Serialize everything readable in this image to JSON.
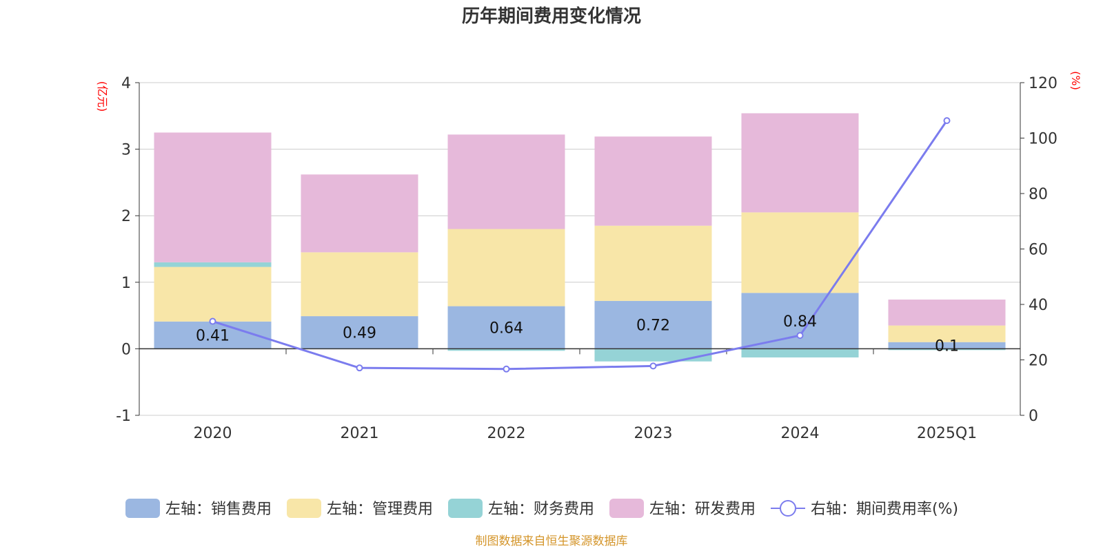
{
  "chart_data": {
    "type": "bar",
    "title": "历年期间费用变化情况",
    "categories": [
      "2020",
      "2021",
      "2022",
      "2023",
      "2024",
      "2025Q1"
    ],
    "left_axis": {
      "unit": "(亿元)",
      "min": -1,
      "max": 4,
      "ticks": [
        -1,
        0,
        1,
        2,
        3,
        4
      ]
    },
    "right_axis": {
      "unit": "(%)",
      "min": 0,
      "max": 120,
      "ticks": [
        0,
        20,
        40,
        60,
        80,
        100,
        120
      ]
    },
    "series": [
      {
        "name": "左轴：销售费用",
        "axis": "left",
        "type": "bar",
        "color": "#9bb7e1",
        "values": [
          0.41,
          0.49,
          0.64,
          0.72,
          0.84,
          0.1
        ],
        "labels": [
          "0.41",
          "0.49",
          "0.64",
          "0.72",
          "0.84",
          "0.1"
        ]
      },
      {
        "name": "左轴：管理费用",
        "axis": "left",
        "type": "bar",
        "color": "#f8e6a8",
        "values": [
          0.82,
          0.96,
          1.16,
          1.13,
          1.21,
          0.25
        ]
      },
      {
        "name": "左轴：财务费用",
        "axis": "left",
        "type": "bar",
        "color": "#95d3d6",
        "values": [
          0.07,
          0.0,
          -0.03,
          -0.19,
          -0.13,
          -0.02
        ]
      },
      {
        "name": "左轴：研发费用",
        "axis": "left",
        "type": "bar",
        "color": "#e6b9da",
        "values": [
          1.95,
          1.17,
          1.42,
          1.34,
          1.49,
          0.39
        ]
      },
      {
        "name": "右轴：期间费用率(%)",
        "axis": "right",
        "type": "line",
        "color": "#7b7cee",
        "values": [
          33.9,
          17.1,
          16.7,
          17.8,
          28.8,
          106.3
        ]
      }
    ],
    "grid": true,
    "legend_position": "bottom"
  },
  "footer": {
    "source": "制图数据来自恒生聚源数据库"
  }
}
